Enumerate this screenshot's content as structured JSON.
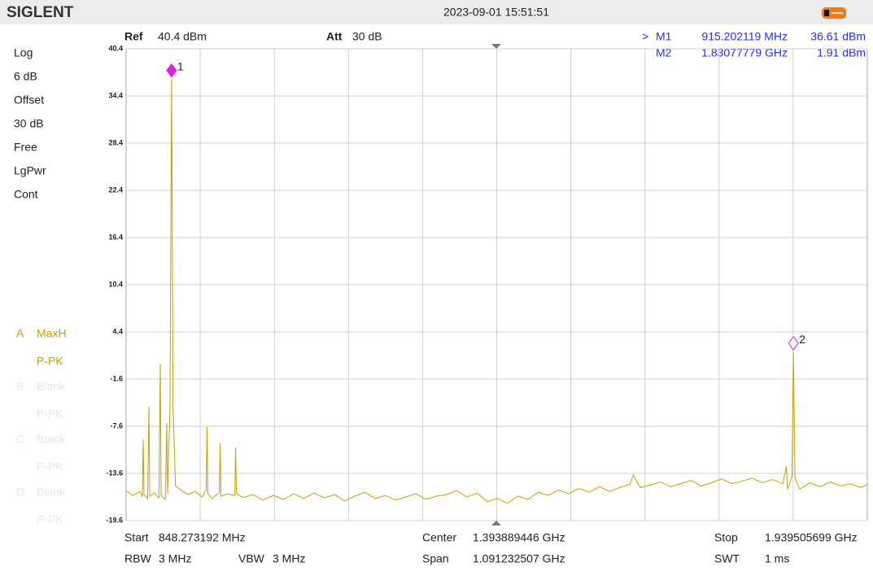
{
  "header": {
    "brand": "SIGLENT",
    "datetime": "2023-09-01 15:51:51"
  },
  "settings": {
    "ref_label": "Ref",
    "ref_value": "40.4 dBm",
    "att_label": "Att",
    "att_value": "30 dB"
  },
  "markers_table": {
    "cursor": ">",
    "rows": [
      {
        "name": "M1",
        "freq": "915.202119 MHz",
        "amp": "36.61 dBm"
      },
      {
        "name": "M2",
        "freq": "1.83077779 GHz",
        "amp": "1.91 dBm"
      }
    ]
  },
  "left_panel": [
    "Log",
    "6 dB",
    "Offset",
    "30 dB",
    "Free",
    "LgPwr",
    "Cont"
  ],
  "traces": [
    {
      "letter": "A",
      "mode": "MaxH",
      "detector": "P-PK"
    },
    {
      "letter": "B",
      "mode": "Blank",
      "detector": "P-PK"
    },
    {
      "letter": "C",
      "mode": "Blank",
      "detector": "P-PK"
    },
    {
      "letter": "D",
      "mode": "Blank",
      "detector": "P-PK"
    }
  ],
  "footer": [
    [
      {
        "label": "Start",
        "value": "848.273192 MHz"
      },
      {
        "label": "Center",
        "value": "1.393889446 GHz"
      },
      {
        "label": "Stop",
        "value": "1.939505699 GHz"
      }
    ],
    [
      {
        "label": "RBW",
        "value": "3 MHz"
      },
      {
        "label": "VBW",
        "value": "3 MHz"
      },
      {
        "label": "Span",
        "value": "1.091232507 GHz"
      },
      {
        "label": "SWT",
        "value": "1 ms"
      }
    ]
  ],
  "chart_data": {
    "type": "line",
    "color": "#c9a000",
    "grid": true,
    "xlim": [
      848.273192,
      1939.505699
    ],
    "ylim": [
      -19.6,
      40.4
    ],
    "yticks": [
      40.4,
      34.4,
      28.4,
      22.4,
      16.4,
      10.4,
      4.4,
      -1.6,
      -7.6,
      -13.6,
      -19.6
    ],
    "x": [
      848.3,
      858.0,
      869.0,
      872.2,
      873.4,
      874.6,
      880.0,
      881.8,
      883.0,
      890.0,
      896.5,
      898.6,
      899.8,
      906.0,
      908.2,
      909.4,
      913.0,
      915.2,
      917.4,
      921,
      930,
      940,
      950,
      960,
      966.2,
      967.4,
      968.6,
      975,
      985.6,
      986.8,
      988.0,
      998,
      1008.3,
      1009.5,
      1010.7,
      1020,
      1035,
      1050,
      1065,
      1080,
      1095,
      1110,
      1125,
      1140,
      1155,
      1170,
      1185,
      1200,
      1215,
      1230,
      1245,
      1260,
      1275,
      1290,
      1305,
      1320,
      1335,
      1350,
      1365,
      1380,
      1395,
      1410,
      1425,
      1440,
      1455,
      1470,
      1485,
      1500,
      1515,
      1530,
      1545,
      1560,
      1575,
      1590,
      1595,
      1605,
      1620,
      1635,
      1650,
      1665,
      1680,
      1695,
      1710,
      1725,
      1740,
      1755,
      1770,
      1785,
      1800,
      1815,
      1820.5,
      1822,
      1828.6,
      1830.8,
      1833.0,
      1840,
      1855,
      1870,
      1885,
      1900,
      1915,
      1930,
      1939.5
    ],
    "values": [
      -15.8,
      -16.4,
      -15.9,
      -16.6,
      -9.3,
      -16.3,
      -16.8,
      -5.1,
      -16.5,
      -16.1,
      -16.7,
      0.4,
      -16.4,
      -16.9,
      -7.2,
      -16.2,
      -5.0,
      36.6,
      -5.0,
      -15.2,
      -15.8,
      -16.3,
      -15.9,
      -16.6,
      -15.7,
      -7.7,
      -16.2,
      -16.8,
      -16.0,
      -9.8,
      -16.5,
      -16.2,
      -16.4,
      -10.3,
      -16.1,
      -16.7,
      -16.3,
      -17.0,
      -16.4,
      -16.9,
      -16.2,
      -16.8,
      -16.1,
      -16.7,
      -16.3,
      -17.1,
      -16.5,
      -16.0,
      -16.8,
      -16.4,
      -17.0,
      -16.6,
      -16.2,
      -16.9,
      -16.5,
      -16.3,
      -15.8,
      -16.6,
      -16.1,
      -17.2,
      -16.8,
      -17.4,
      -16.5,
      -16.9,
      -16.0,
      -16.4,
      -15.7,
      -16.2,
      -15.5,
      -16.0,
      -15.3,
      -15.9,
      -15.4,
      -15.0,
      -13.8,
      -15.4,
      -15.1,
      -14.7,
      -15.3,
      -14.9,
      -14.5,
      -15.2,
      -14.8,
      -14.3,
      -14.9,
      -14.6,
      -14.2,
      -14.8,
      -14.4,
      -14.9,
      -12.7,
      -15.6,
      -14.0,
      1.9,
      -14.2,
      -15.6,
      -14.8,
      -15.3,
      -14.7,
      -15.2,
      -14.9,
      -15.4,
      -15.0
    ],
    "markers": [
      {
        "label": "1",
        "x": 915.202119,
        "value": 36.61,
        "filled": true,
        "color": "#e020e0"
      },
      {
        "label": "2",
        "x": 1830.77779,
        "value": 1.91,
        "filled": false,
        "color": "#e020e0"
      }
    ]
  }
}
